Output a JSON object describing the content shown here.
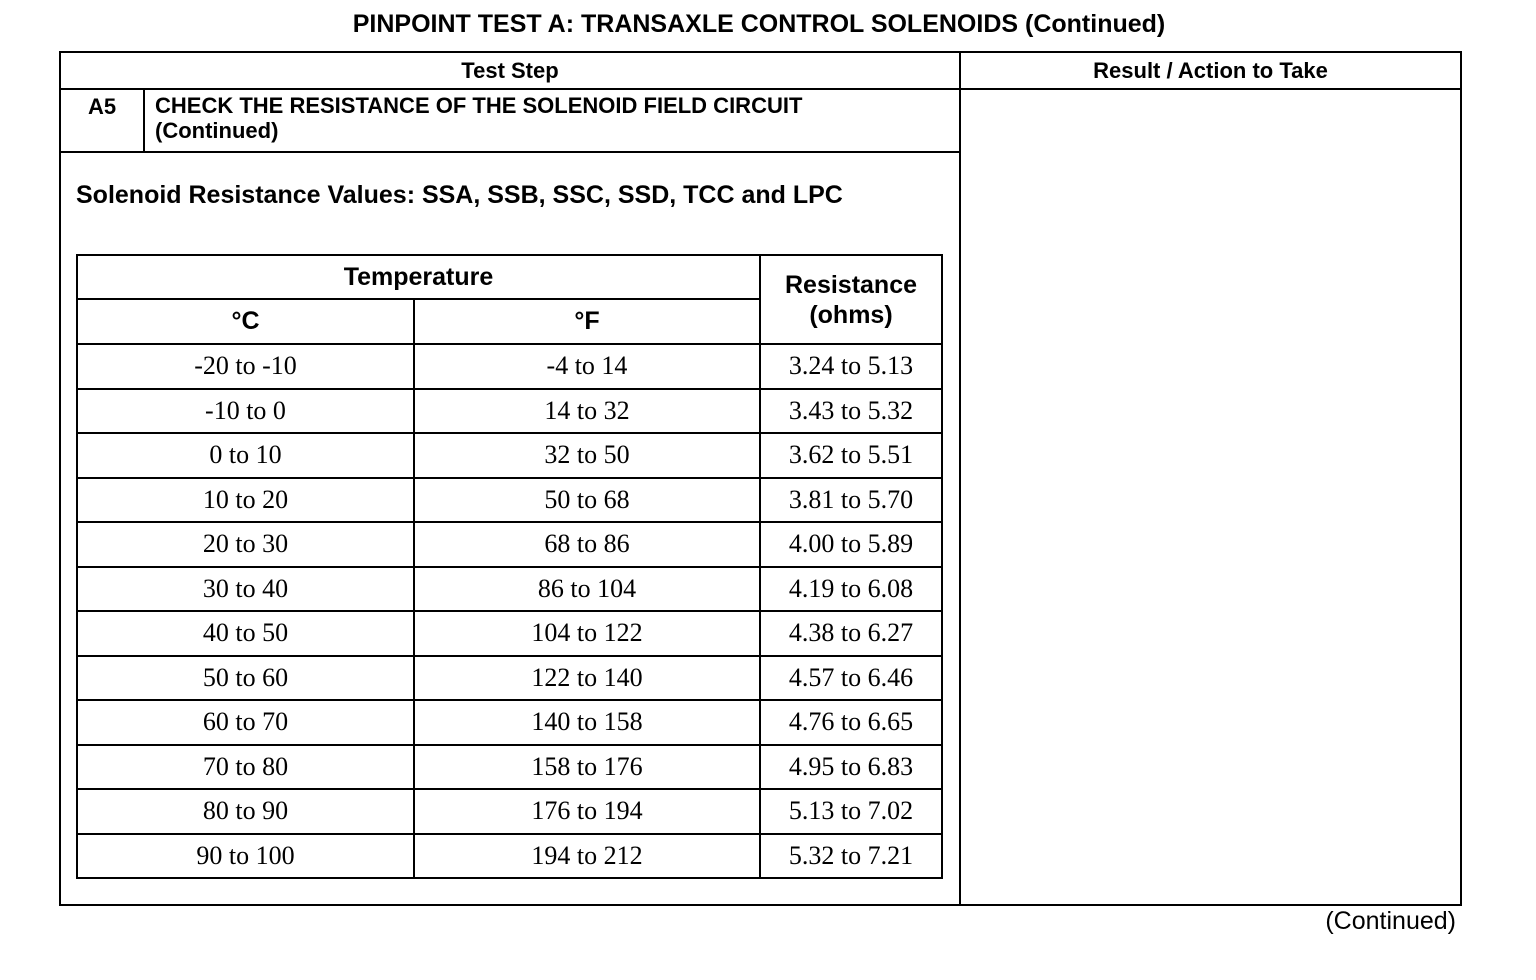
{
  "title": "PINPOINT TEST  A: TRANSAXLE CONTROL SOLENOIDS (Continued)",
  "header": {
    "test_step": "Test Step",
    "result": "Result / Action to Take"
  },
  "step": {
    "id": "A5",
    "text_line1": "CHECK THE RESISTANCE OF THE SOLENOID FIELD CIRCUIT",
    "text_line2": "(Continued)"
  },
  "subtitle": "Solenoid Resistance Values: SSA, SSB, SSC, SSD, TCC and LPC",
  "table": {
    "group_header": "Temperature",
    "col_c": "°C",
    "col_f": "°F",
    "col_r_line1": "Resistance",
    "col_r_line2": "(ohms)",
    "rows": [
      {
        "c": "-20 to -10",
        "f": "-4 to 14",
        "r": "3.24 to 5.13"
      },
      {
        "c": "-10 to 0",
        "f": "14 to 32",
        "r": "3.43 to 5.32"
      },
      {
        "c": "0 to 10",
        "f": "32 to 50",
        "r": "3.62 to 5.51"
      },
      {
        "c": "10 to 20",
        "f": "50 to 68",
        "r": "3.81 to 5.70"
      },
      {
        "c": "20 to 30",
        "f": "68 to 86",
        "r": "4.00 to 5.89"
      },
      {
        "c": "30 to 40",
        "f": "86 to 104",
        "r": "4.19 to 6.08"
      },
      {
        "c": "40 to 50",
        "f": "104 to 122",
        "r": "4.38 to 6.27"
      },
      {
        "c": "50 to 60",
        "f": "122 to 140",
        "r": "4.57 to 6.46"
      },
      {
        "c": "60 to 70",
        "f": "140 to 158",
        "r": "4.76 to 6.65"
      },
      {
        "c": "70 to 80",
        "f": "158 to 176",
        "r": "4.95 to 6.83"
      },
      {
        "c": "80 to 90",
        "f": "176 to 194",
        "r": "5.13 to 7.02"
      },
      {
        "c": "90 to 100",
        "f": "194 to 212",
        "r": "5.32 to 7.21"
      }
    ]
  },
  "footer": "(Continued)"
}
